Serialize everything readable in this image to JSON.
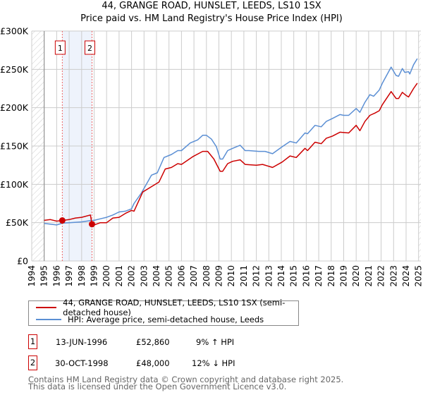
{
  "chart_data": {
    "type": "line",
    "title": "44, GRANGE ROAD, HUNSLET, LEEDS, LS10 1SX",
    "subtitle": "Price paid vs. HM Land Registry's House Price Index (HPI)",
    "xlabel": "",
    "ylabel": "",
    "xlim": [
      1994,
      2025
    ],
    "ylim": [
      0,
      300000
    ],
    "yticks": [
      0,
      50000,
      100000,
      150000,
      200000,
      250000,
      300000
    ],
    "ytick_labels": [
      "£0",
      "£50K",
      "£100K",
      "£150K",
      "£200K",
      "£250K",
      "£300K"
    ],
    "xticks": [
      1994,
      1995,
      1996,
      1997,
      1998,
      1999,
      2000,
      2001,
      2002,
      2003,
      2004,
      2005,
      2006,
      2007,
      2008,
      2009,
      2010,
      2011,
      2012,
      2013,
      2014,
      2015,
      2016,
      2017,
      2018,
      2019,
      2020,
      2021,
      2022,
      2023,
      2024,
      2025
    ],
    "grid": true,
    "colors": {
      "property": "#cc0000",
      "hpi": "#5b8fd4",
      "shade": "#eef3fc"
    },
    "series": [
      {
        "name": "44, GRANGE ROAD, HUNSLET, LEEDS, LS10 1SX (semi-detached house)",
        "x": [
          1995,
          1995.5,
          1996,
          1996.45,
          1997,
          1997.5,
          1998,
          1998.7,
          1998.83,
          1999,
          1999.5,
          2000,
          2000.5,
          2001,
          2001.5,
          2002,
          2002.2,
          2002.9,
          2003.7,
          2004.2,
          2004.7,
          2005.2,
          2005.7,
          2006,
          2006.9,
          2007.7,
          2008.1,
          2008.6,
          2009.1,
          2009.3,
          2009.7,
          2010.1,
          2010.7,
          2011.1,
          2012,
          2012.5,
          2013.3,
          2014.06,
          2014.7,
          2015.2,
          2015.9,
          2016.1,
          2016.7,
          2017.2,
          2017.6,
          2018.1,
          2018.7,
          2019.4,
          2020,
          2020.3,
          2020.7,
          2021.1,
          2021.5,
          2021.85,
          2022.1,
          2022.8,
          2023.2,
          2023.4,
          2023.7,
          2024,
          2024.2,
          2024.6,
          2024.9
        ],
        "y": [
          53000,
          54000,
          52000,
          52860,
          54000,
          56000,
          57000,
          60000,
          48000,
          47000,
          50000,
          50000,
          56000,
          57000,
          62000,
          66000,
          65000,
          90000,
          98000,
          103000,
          120000,
          122000,
          127000,
          126000,
          136000,
          143000,
          143000,
          133000,
          117000,
          117000,
          127000,
          130000,
          132000,
          126000,
          125000,
          126000,
          122000,
          129000,
          137000,
          135000,
          147000,
          144000,
          155000,
          153000,
          160000,
          163000,
          168000,
          167000,
          177000,
          170000,
          182000,
          190000,
          193000,
          196000,
          204000,
          221000,
          212000,
          212000,
          220000,
          216000,
          214000,
          225000,
          232000
        ]
      },
      {
        "name": "HPI: Average price, semi-detached house, Leeds",
        "x": [
          1995,
          1996,
          1996.5,
          1997,
          1998,
          1998.8,
          1999,
          1999.5,
          2000,
          2000.5,
          2001,
          2001.5,
          2002,
          2002.2,
          2002.8,
          2003.6,
          2004.06,
          2004.6,
          2005.2,
          2005.7,
          2006,
          2006.7,
          2007.3,
          2007.7,
          2008,
          2008.4,
          2008.8,
          2009.1,
          2009.3,
          2009.7,
          2010.1,
          2010.7,
          2011.1,
          2011.4,
          2012.2,
          2012.7,
          2013.3,
          2014.06,
          2014.7,
          2015.2,
          2015.9,
          2016.1,
          2016.7,
          2017.2,
          2017.6,
          2018.1,
          2018.7,
          2019,
          2019.4,
          2020,
          2020.3,
          2020.7,
          2021.1,
          2021.4,
          2021.85,
          2022.1,
          2022.8,
          2023.2,
          2023.4,
          2023.7,
          2023.9,
          2024.2,
          2024.3,
          2024.6,
          2024.9
        ],
        "y": [
          49000,
          47000,
          49500,
          50000,
          51000,
          53000,
          53000,
          55000,
          57000,
          60000,
          64000,
          65000,
          68000,
          75000,
          89000,
          112000,
          115000,
          135000,
          139000,
          144000,
          144000,
          154000,
          158000,
          164000,
          164000,
          159000,
          149000,
          133000,
          133000,
          144000,
          147000,
          151000,
          144000,
          144000,
          143000,
          143000,
          140000,
          149000,
          156000,
          154000,
          167000,
          166000,
          177000,
          175000,
          182000,
          186000,
          191000,
          190000,
          190000,
          199000,
          194000,
          207000,
          217000,
          215000,
          223000,
          232000,
          253000,
          242000,
          241000,
          251000,
          246000,
          247000,
          244000,
          256000,
          264000
        ]
      }
    ],
    "sales": [
      {
        "label": "1",
        "x": 1996.45,
        "y": 52860
      },
      {
        "label": "2",
        "x": 1998.83,
        "y": 48000
      }
    ],
    "legend_position": "below"
  },
  "legend": {
    "property": "44, GRANGE ROAD, HUNSLET, LEEDS, LS10 1SX (semi-detached house)",
    "hpi": "HPI: Average price, semi-detached house, Leeds"
  },
  "transactions": [
    {
      "num": "1",
      "date": "13-JUN-1996",
      "price": "£52,860",
      "hpi": "9% ↑ HPI"
    },
    {
      "num": "2",
      "date": "30-OCT-1998",
      "price": "£48,000",
      "hpi": "12% ↓ HPI"
    }
  ],
  "footer": {
    "line1": "Contains HM Land Registry data © Crown copyright and database right 2025.",
    "line2": "This data is licensed under the Open Government Licence v3.0."
  }
}
